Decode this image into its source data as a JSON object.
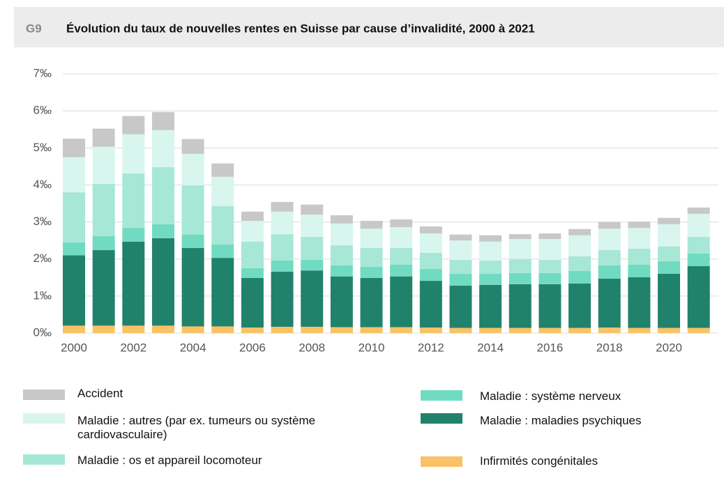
{
  "chart_data": {
    "type": "stacked_bar",
    "code": "G9",
    "title": "Évolution du taux de nouvelles rentes en Suisse par cause d’invalidité, 2000 à 2021",
    "categories": [
      2000,
      null,
      2002,
      null,
      2004,
      null,
      2006,
      null,
      2008,
      null,
      2010,
      null,
      2012,
      null,
      2014,
      null,
      2016,
      null,
      2018,
      null,
      2020,
      null
    ],
    "series": [
      {
        "name": "Infirmités congénitales",
        "color": "#f9c266",
        "values": [
          0.2,
          0.2,
          0.2,
          0.2,
          0.18,
          0.18,
          0.15,
          0.17,
          0.17,
          0.16,
          0.16,
          0.16,
          0.15,
          0.14,
          0.14,
          0.14,
          0.14,
          0.14,
          0.15,
          0.14,
          0.14,
          0.14
        ]
      },
      {
        "name": "Maladie : maladies psychiques",
        "color": "#21826c",
        "values": [
          1.9,
          2.04,
          2.27,
          2.36,
          2.12,
          1.85,
          1.34,
          1.49,
          1.52,
          1.37,
          1.33,
          1.37,
          1.26,
          1.14,
          1.16,
          1.18,
          1.18,
          1.2,
          1.32,
          1.37,
          1.46,
          1.67
        ]
      },
      {
        "name": "Maladie : système nerveux",
        "color": "#70dbc1",
        "values": [
          0.35,
          0.38,
          0.37,
          0.38,
          0.36,
          0.36,
          0.26,
          0.3,
          0.29,
          0.3,
          0.3,
          0.32,
          0.32,
          0.32,
          0.3,
          0.3,
          0.3,
          0.34,
          0.36,
          0.34,
          0.34,
          0.34
        ]
      },
      {
        "name": "Maladie : os et appareil locomoteur",
        "color": "#a7e7d6",
        "values": [
          1.35,
          1.41,
          1.47,
          1.54,
          1.33,
          1.04,
          0.72,
          0.71,
          0.62,
          0.54,
          0.51,
          0.45,
          0.44,
          0.38,
          0.36,
          0.38,
          0.36,
          0.39,
          0.41,
          0.43,
          0.4,
          0.45
        ]
      },
      {
        "name": "Maladie : autres (par ex. tumeurs ou système cardiovasculaire)",
        "color": "#d8f6ee",
        "values": [
          0.95,
          1.0,
          1.06,
          1.0,
          0.85,
          0.79,
          0.56,
          0.61,
          0.6,
          0.59,
          0.52,
          0.56,
          0.52,
          0.52,
          0.51,
          0.54,
          0.56,
          0.57,
          0.58,
          0.56,
          0.6,
          0.62
        ]
      },
      {
        "name": "Accident",
        "color": "#c8c8c8",
        "values": [
          0.5,
          0.49,
          0.49,
          0.49,
          0.4,
          0.36,
          0.25,
          0.26,
          0.27,
          0.22,
          0.21,
          0.21,
          0.19,
          0.16,
          0.17,
          0.13,
          0.15,
          0.17,
          0.18,
          0.17,
          0.17,
          0.17
        ]
      }
    ],
    "ylim": [
      0,
      7
    ],
    "yticks": [
      {
        "value": 0,
        "label": "0‰"
      },
      {
        "value": 1,
        "label": "1‰"
      },
      {
        "value": 2,
        "label": "2‰"
      },
      {
        "value": 3,
        "label": "3‰"
      },
      {
        "value": 4,
        "label": "4‰"
      },
      {
        "value": 5,
        "label": "5‰"
      },
      {
        "value": 6,
        "label": "6‰"
      },
      {
        "value": 7,
        "label": "7‰"
      }
    ],
    "grid": true
  }
}
